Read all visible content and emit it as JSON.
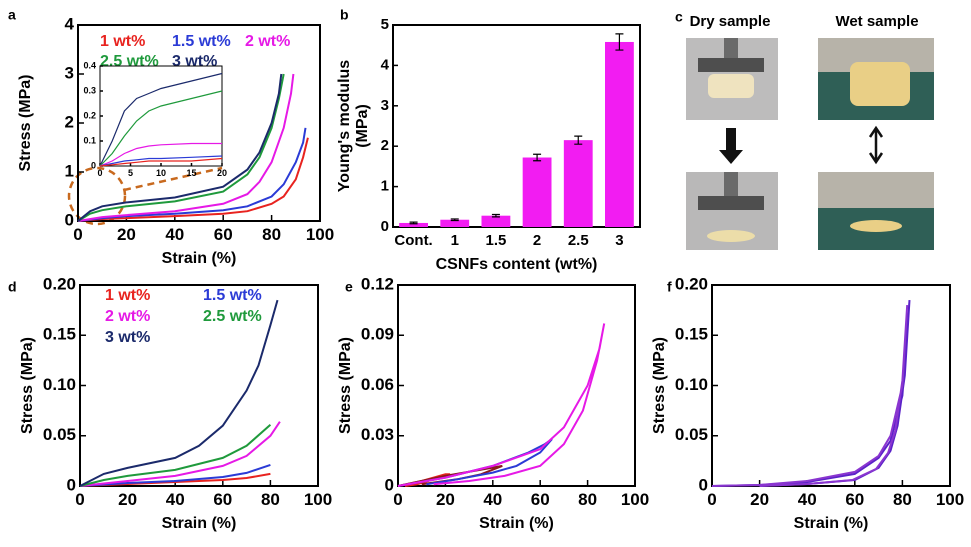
{
  "chart_data": [
    {
      "type": "line",
      "panel": "a",
      "x_label": "Strain (%)",
      "y_label": "Stress (MPa)",
      "xlim": [
        0,
        100
      ],
      "xticks": [
        0,
        20,
        40,
        60,
        80,
        100
      ],
      "ylim": [
        0,
        4
      ],
      "yticks": [
        0,
        1,
        2,
        3,
        4
      ],
      "series": [
        {
          "name": "1 wt%",
          "color": "#e8231f",
          "x": [
            0,
            10,
            20,
            40,
            60,
            70,
            80,
            85,
            90,
            93,
            95
          ],
          "values": [
            0,
            0.04,
            0.06,
            0.1,
            0.15,
            0.2,
            0.35,
            0.5,
            0.85,
            1.3,
            1.7
          ]
        },
        {
          "name": "1.5 wt%",
          "color": "#2b3bd6",
          "x": [
            0,
            10,
            20,
            40,
            60,
            70,
            80,
            85,
            90,
            93,
            94
          ],
          "values": [
            0,
            0.06,
            0.1,
            0.15,
            0.22,
            0.3,
            0.5,
            0.75,
            1.2,
            1.6,
            1.9
          ]
        },
        {
          "name": "2 wt%",
          "color": "#e619e6",
          "x": [
            0,
            10,
            20,
            40,
            60,
            70,
            75,
            80,
            85,
            88,
            89
          ],
          "values": [
            0,
            0.08,
            0.12,
            0.2,
            0.35,
            0.55,
            0.8,
            1.2,
            1.9,
            2.6,
            3.0
          ]
        },
        {
          "name": "2.5 wt%",
          "color": "#1f9a3c",
          "x": [
            0,
            5,
            10,
            20,
            40,
            60,
            70,
            75,
            80,
            83,
            85
          ],
          "values": [
            0,
            0.15,
            0.22,
            0.3,
            0.4,
            0.6,
            0.95,
            1.3,
            1.9,
            2.5,
            3.0
          ]
        },
        {
          "name": "3 wt%",
          "color": "#1b2a6b",
          "x": [
            0,
            5,
            10,
            20,
            40,
            60,
            70,
            75,
            80,
            83,
            84
          ],
          "values": [
            0,
            0.2,
            0.3,
            0.38,
            0.48,
            0.7,
            1.05,
            1.4,
            2.0,
            2.6,
            3.0
          ]
        }
      ],
      "inset": {
        "type": "line",
        "xlim": [
          0,
          20
        ],
        "xticks": [
          0,
          5,
          10,
          15,
          20
        ],
        "ylim": [
          0,
          0.4
        ],
        "yticks": [
          0,
          0.1,
          0.2,
          0.3,
          0.4
        ],
        "x": [
          0,
          2,
          4,
          6,
          8,
          10,
          15,
          20
        ],
        "series": [
          {
            "color": "#1b2a6b",
            "values": [
              0,
              0.1,
              0.22,
              0.27,
              0.29,
              0.31,
              0.34,
              0.37
            ]
          },
          {
            "color": "#1f9a3c",
            "values": [
              0,
              0.05,
              0.12,
              0.18,
              0.22,
              0.24,
              0.27,
              0.3
            ]
          },
          {
            "color": "#e619e6",
            "values": [
              0,
              0.02,
              0.05,
              0.07,
              0.08,
              0.085,
              0.09,
              0.09
            ]
          },
          {
            "color": "#2b3bd6",
            "values": [
              0,
              0.01,
              0.02,
              0.025,
              0.03,
              0.03,
              0.035,
              0.04
            ]
          },
          {
            "color": "#e8231f",
            "values": [
              0,
              0.005,
              0.01,
              0.015,
              0.02,
              0.02,
              0.02,
              0.03
            ]
          }
        ]
      }
    },
    {
      "type": "bar",
      "panel": "b",
      "x_label": "CSNFs content (wt%)",
      "y_label_lines": [
        "Young's modulus",
        "(MPa)"
      ],
      "categories": [
        "Cont.",
        "1",
        "1.5",
        "2",
        "2.5",
        "3"
      ],
      "values": [
        0.1,
        0.18,
        0.28,
        1.72,
        2.15,
        4.58
      ],
      "errors": [
        0.02,
        0.02,
        0.03,
        0.08,
        0.1,
        0.2
      ],
      "color": "#f21cf2",
      "ylim": [
        0,
        5
      ],
      "yticks": [
        0,
        1,
        2,
        3,
        4,
        5
      ]
    },
    {
      "type": "line",
      "panel": "d",
      "x_label": "Strain (%)",
      "y_label": "Stress (MPa)",
      "xlim": [
        0,
        100
      ],
      "xticks": [
        0,
        20,
        40,
        60,
        80,
        100
      ],
      "ylim": [
        0,
        0.2
      ],
      "yticks": [
        0,
        0.05,
        {
          "value": 0.1,
          "label": "0.10"
        },
        0.15,
        {
          "value": 0.2,
          "label": "0.20"
        }
      ],
      "series": [
        {
          "name": "1 wt%",
          "color": "#e8231f",
          "x": [
            0,
            20,
            40,
            60,
            70,
            80
          ],
          "values": [
            0,
            0.002,
            0.004,
            0.006,
            0.008,
            0.012
          ]
        },
        {
          "name": "1.5 wt%",
          "color": "#2b3bd6",
          "x": [
            0,
            20,
            40,
            60,
            70,
            80
          ],
          "values": [
            0,
            0.003,
            0.005,
            0.009,
            0.013,
            0.021
          ]
        },
        {
          "name": "2 wt%",
          "color": "#e619e6",
          "x": [
            0,
            20,
            40,
            60,
            70,
            80,
            84
          ],
          "values": [
            0,
            0.005,
            0.01,
            0.02,
            0.03,
            0.05,
            0.064
          ]
        },
        {
          "name": "2.5 wt%",
          "color": "#1f9a3c",
          "x": [
            0,
            10,
            20,
            40,
            60,
            70,
            80
          ],
          "values": [
            0,
            0.006,
            0.01,
            0.016,
            0.028,
            0.04,
            0.061
          ]
        },
        {
          "name": "3 wt%",
          "color": "#1b2a6b",
          "x": [
            0,
            10,
            20,
            40,
            50,
            60,
            70,
            75,
            80,
            83
          ],
          "values": [
            0,
            0.012,
            0.018,
            0.028,
            0.04,
            0.06,
            0.095,
            0.12,
            0.16,
            0.185
          ]
        }
      ]
    },
    {
      "type": "line",
      "panel": "e",
      "x_label": "Strain (%)",
      "y_label": "Stress (MPa)",
      "xlim": [
        0,
        100
      ],
      "xticks": [
        0,
        20,
        40,
        60,
        80,
        100
      ],
      "ylim": [
        0,
        0.12
      ],
      "yticks": [
        0,
        0.03,
        0.06,
        0.09,
        0.12
      ],
      "series": [
        {
          "color": "#e8231f",
          "x": [
            0,
            10,
            20,
            22,
            15,
            8,
            3
          ],
          "values": [
            0,
            0.003,
            0.007,
            0.007,
            0.004,
            0.001,
            0
          ]
        },
        {
          "color": "#8b1a1a",
          "x": [
            0,
            20,
            40,
            44,
            35,
            25,
            10
          ],
          "values": [
            0,
            0.006,
            0.011,
            0.012,
            0.007,
            0.004,
            0.001
          ]
        },
        {
          "color": "#2b3bd6",
          "x": [
            0,
            20,
            40,
            55,
            62,
            65,
            60,
            50,
            40,
            25,
            12
          ],
          "values": [
            0,
            0.005,
            0.012,
            0.02,
            0.025,
            0.028,
            0.02,
            0.012,
            0.008,
            0.004,
            0.001
          ]
        },
        {
          "color": "#e619e6",
          "x": [
            0,
            20,
            40,
            60,
            70,
            80,
            85,
            87,
            84,
            78,
            70,
            60,
            45,
            30,
            15
          ],
          "values": [
            0,
            0.005,
            0.012,
            0.022,
            0.035,
            0.06,
            0.082,
            0.097,
            0.075,
            0.045,
            0.025,
            0.012,
            0.006,
            0.003,
            0.001
          ]
        }
      ]
    },
    {
      "type": "line",
      "panel": "f",
      "x_label": "Strain (%)",
      "y_label": "Stress (MPa)",
      "xlim": [
        0,
        100
      ],
      "xticks": [
        0,
        20,
        40,
        60,
        80,
        100
      ],
      "ylim": [
        0,
        0.2
      ],
      "yticks": [
        0,
        0.05,
        {
          "value": 0.1,
          "label": "0.10"
        },
        0.15,
        {
          "value": 0.2,
          "label": "0.20"
        }
      ],
      "series": [
        {
          "color": "#5a22c8",
          "x": [
            0,
            20,
            40,
            60,
            70,
            75,
            80,
            83,
            81,
            78,
            75,
            70,
            60,
            40,
            20
          ],
          "values": [
            0,
            0.001,
            0.004,
            0.012,
            0.028,
            0.045,
            0.09,
            0.185,
            0.11,
            0.06,
            0.035,
            0.018,
            0.006,
            0.002,
            0
          ]
        },
        {
          "color": "#8a35d0",
          "x": [
            0,
            20,
            40,
            60,
            70,
            75,
            80,
            82,
            80,
            77,
            74,
            69,
            59,
            40,
            20
          ],
          "values": [
            0,
            0.001,
            0.005,
            0.014,
            0.03,
            0.05,
            0.1,
            0.18,
            0.105,
            0.055,
            0.033,
            0.017,
            0.006,
            0.002,
            0
          ]
        }
      ]
    }
  ],
  "photo_panel": {
    "label": "c",
    "titles": [
      "Dry sample",
      "Wet sample"
    ]
  }
}
